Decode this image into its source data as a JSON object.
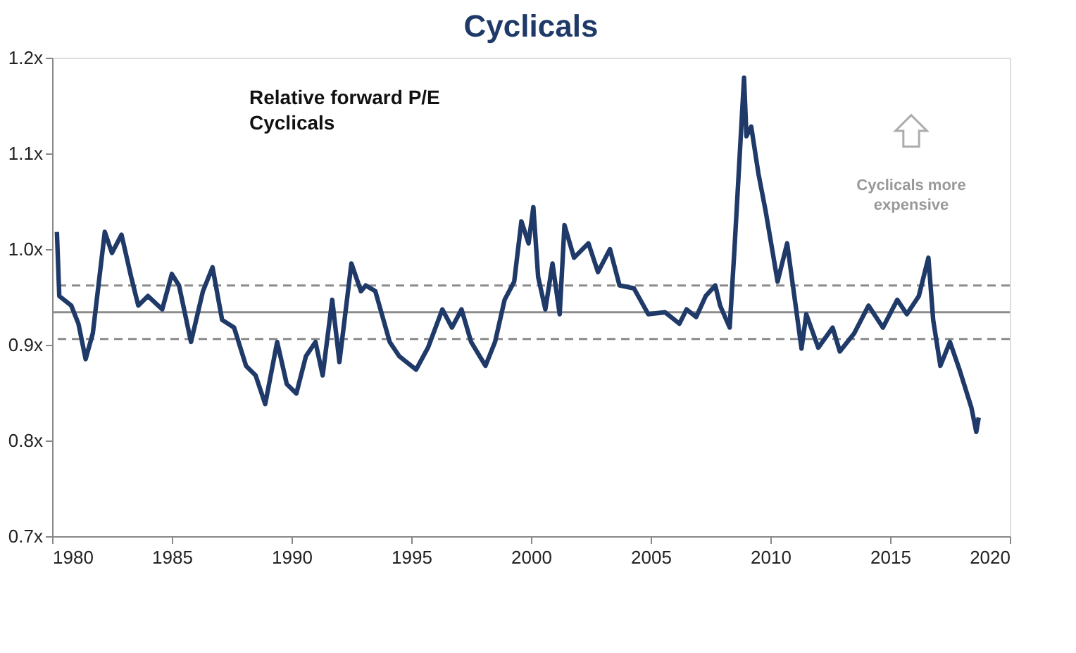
{
  "chart_data": {
    "type": "line",
    "title": "Cyclicals",
    "annotations": [
      "Relative forward P/E",
      "Cyclicals",
      "Cyclicals more expensive"
    ],
    "x": [
      1980.2,
      1980.3,
      1980.8,
      1981.1,
      1981.4,
      1981.7,
      1982.2,
      1982.5,
      1982.9,
      1983.3,
      1983.6,
      1984.0,
      1984.6,
      1985.0,
      1985.3,
      1985.8,
      1986.3,
      1986.7,
      1987.1,
      1987.6,
      1988.1,
      1988.5,
      1988.9,
      1989.4,
      1989.8,
      1990.2,
      1990.6,
      1991.0,
      1991.3,
      1991.7,
      1992.0,
      1992.5,
      1992.9,
      1993.1,
      1993.5,
      1994.1,
      1994.5,
      1995.2,
      1995.7,
      1996.3,
      1996.7,
      1997.1,
      1997.5,
      1998.1,
      1998.5,
      1998.9,
      1999.3,
      1999.6,
      1999.9,
      2000.1,
      2000.3,
      2000.6,
      2000.9,
      2001.2,
      2001.4,
      2001.8,
      2002.4,
      2002.8,
      2003.3,
      2003.7,
      2004.3,
      2004.9,
      2005.6,
      2006.2,
      2006.5,
      2006.9,
      2007.3,
      2007.7,
      2007.9,
      2008.3,
      2008.5,
      2008.9,
      2009.0,
      2009.2,
      2009.5,
      2009.8,
      2010.1,
      2010.3,
      2010.7,
      2011.0,
      2011.3,
      2011.5,
      2012.0,
      2012.6,
      2012.9,
      2013.5,
      2014.1,
      2014.7,
      2015.3,
      2015.7,
      2016.2,
      2016.6,
      2016.8,
      2017.1,
      2017.5,
      2017.9,
      2018.4,
      2018.6,
      2018.7
    ],
    "series": [
      {
        "color": "#1f3a68",
        "values": [
          1.018,
          0.951,
          0.941,
          0.922,
          0.885,
          0.912,
          1.018,
          0.996,
          1.015,
          0.971,
          0.941,
          0.951,
          0.937,
          0.974,
          0.962,
          0.903,
          0.956,
          0.981,
          0.926,
          0.918,
          0.878,
          0.868,
          0.838,
          0.903,
          0.859,
          0.849,
          0.888,
          0.903,
          0.868,
          0.947,
          0.882,
          0.985,
          0.956,
          0.962,
          0.956,
          0.903,
          0.888,
          0.874,
          0.897,
          0.937,
          0.918,
          0.937,
          0.903,
          0.878,
          0.903,
          0.947,
          0.966,
          1.029,
          1.006,
          1.044,
          0.971,
          0.937,
          0.985,
          0.932,
          1.025,
          0.991,
          1.006,
          0.976,
          1.0,
          0.962,
          0.959,
          0.932,
          0.934,
          0.922,
          0.937,
          0.929,
          0.951,
          0.962,
          0.941,
          0.918,
          1.0,
          1.179,
          1.118,
          1.128,
          1.079,
          1.04,
          0.996,
          0.966,
          1.006,
          0.951,
          0.896,
          0.932,
          0.897,
          0.918,
          0.893,
          0.912,
          0.941,
          0.918,
          0.947,
          0.932,
          0.951,
          0.991,
          0.926,
          0.878,
          0.903,
          0.874,
          0.834,
          0.809,
          0.824
        ]
      }
    ],
    "xlim": [
      1980,
      2020
    ],
    "xticks": [
      1980,
      1985,
      1990,
      1995,
      2000,
      2005,
      2010,
      2015,
      2020
    ],
    "ylim": [
      0.7,
      1.2
    ],
    "yticks": [
      {
        "value": 0.7,
        "label": "0.7x"
      },
      {
        "value": 0.8,
        "label": "0.8x"
      },
      {
        "value": 0.9,
        "label": "0.9x"
      },
      {
        "value": 1.0,
        "label": "1.0x"
      },
      {
        "value": 1.1,
        "label": "1.1x"
      },
      {
        "value": 1.2,
        "label": "1.2x"
      }
    ],
    "ref_lines": [
      {
        "axis": "y",
        "value": 0.934,
        "color": "#8c8c8c",
        "line_style": "solid"
      },
      {
        "axis": "y",
        "value": 0.962,
        "color": "#8c8c8c",
        "line_style": "dashed"
      },
      {
        "axis": "y",
        "value": 0.906,
        "color": "#8c8c8c",
        "line_style": "dashed"
      }
    ],
    "grid": false,
    "marker": "none",
    "line_style": "solid"
  }
}
